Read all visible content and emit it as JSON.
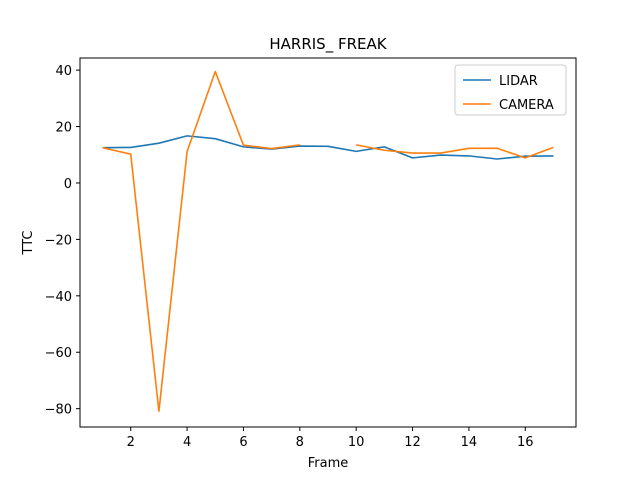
{
  "chart_data": {
    "type": "line",
    "title": "HARRIS_ FREAK",
    "xlabel": "Frame",
    "ylabel": "TTC",
    "xlim": [
      0.2,
      17.8
    ],
    "ylim": [
      -86.5,
      44.3
    ],
    "xticks": [
      2,
      4,
      6,
      8,
      10,
      12,
      14,
      16
    ],
    "yticks": [
      -80,
      -60,
      -40,
      -20,
      0,
      20,
      40
    ],
    "ytick_labels": [
      "−80",
      "−60",
      "−40",
      "−20",
      "0",
      "20",
      "40"
    ],
    "grid": false,
    "legend_position": "top-right",
    "x": [
      1,
      2,
      3,
      4,
      5,
      6,
      7,
      8,
      9,
      10,
      11,
      12,
      13,
      14,
      15,
      16,
      17
    ],
    "series": [
      {
        "name": "LIDAR",
        "color": "#1f77b4",
        "values": [
          12.5,
          12.6,
          14.1,
          16.7,
          15.7,
          12.8,
          12.0,
          13.1,
          13.0,
          11.2,
          12.8,
          8.9,
          9.9,
          9.6,
          8.5,
          9.5,
          9.6
        ]
      },
      {
        "name": "CAMERA",
        "color": "#ff7f0e",
        "values": [
          12.5,
          10.2,
          -80.9,
          11.1,
          39.5,
          13.4,
          12.2,
          13.5,
          null,
          13.5,
          11.6,
          10.6,
          10.6,
          12.3,
          12.3,
          8.9,
          12.6
        ]
      }
    ]
  }
}
